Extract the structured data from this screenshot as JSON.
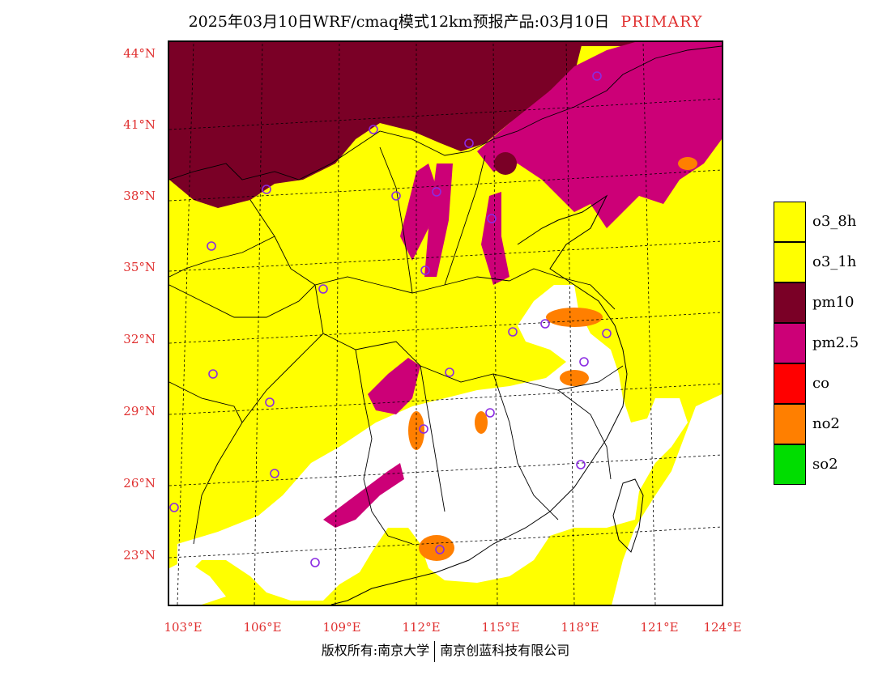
{
  "title": {
    "main": "2025年03月10日WRF/cmaq模式12km预报产品:03月10日",
    "tag": "PRIMARY"
  },
  "axes": {
    "lat_labels": [
      "44°N",
      "41°N",
      "38°N",
      "35°N",
      "32°N",
      "29°N",
      "26°N",
      "23°N"
    ],
    "lon_labels": [
      "103°E",
      "106°E",
      "109°E",
      "112°E",
      "115°E",
      "118°E",
      "121°E",
      "124°E"
    ]
  },
  "legend": [
    {
      "label": "o3_8h",
      "color": "#ffff00"
    },
    {
      "label": "o3_1h",
      "color": "#ffff00"
    },
    {
      "label": "pm10",
      "color": "#7a0026"
    },
    {
      "label": "pm2.5",
      "color": "#cc0077"
    },
    {
      "label": "co",
      "color": "#ff0000"
    },
    {
      "label": "no2",
      "color": "#ff7f00"
    },
    {
      "label": "so2",
      "color": "#00dd00"
    }
  ],
  "footer": {
    "left": "版权所有:南京大学",
    "right": "南京创蓝科技有限公司"
  },
  "colors": {
    "label_red": "#e03030",
    "o3": "#ffff00",
    "pm10": "#7a0026",
    "pm25": "#cc0077",
    "no2": "#ff7f00",
    "station_ring": "#8a2be2"
  }
}
